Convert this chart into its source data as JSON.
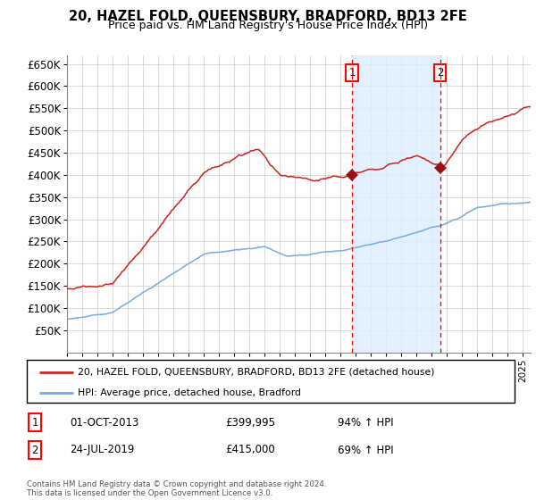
{
  "title": "20, HAZEL FOLD, QUEENSBURY, BRADFORD, BD13 2FE",
  "subtitle": "Price paid vs. HM Land Registry's House Price Index (HPI)",
  "legend_line1": "20, HAZEL FOLD, QUEENSBURY, BRADFORD, BD13 2FE (detached house)",
  "legend_line2": "HPI: Average price, detached house, Bradford",
  "transaction1_date": "01-OCT-2013",
  "transaction1_price": "£399,995",
  "transaction1_hpi": "94% ↑ HPI",
  "transaction1_year": 2013.75,
  "transaction1_price_val": 399995,
  "transaction2_date": "24-JUL-2019",
  "transaction2_price": "£415,000",
  "transaction2_hpi": "69% ↑ HPI",
  "transaction2_year": 2019.55,
  "transaction2_price_val": 415000,
  "footer": "Contains HM Land Registry data © Crown copyright and database right 2024.\nThis data is licensed under the Open Government Licence v3.0.",
  "hpi_color": "#7aaadd",
  "price_color": "#cc2222",
  "marker_color": "#991111",
  "background_color": "#ffffff",
  "highlight_color": "#ddeeff",
  "yticks": [
    50000,
    100000,
    150000,
    200000,
    250000,
    300000,
    350000,
    400000,
    450000,
    500000,
    550000,
    600000,
    650000
  ],
  "year_start": 1995,
  "year_end": 2025
}
